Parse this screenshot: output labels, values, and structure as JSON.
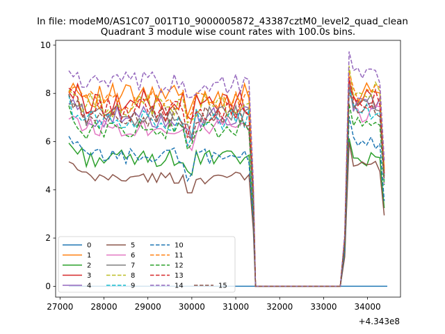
{
  "figure": {
    "suptitle": "In file: modeM0/AS1C07_001T10_9000005872_43387cztM0_level2_quad_clean",
    "title": "Quadrant 3 module wise count rates with 100.0s bins."
  },
  "chart_data": {
    "type": "line",
    "title": "Quadrant 3 module wise count rates with 100.0s bins.",
    "xlabel": "",
    "ylabel": "",
    "x_offset_label": "+4.343e8",
    "xlim": [
      26900,
      34750
    ],
    "ylim": [
      -0.45,
      10.2
    ],
    "xticks": [
      27000,
      28000,
      29000,
      30000,
      31000,
      32000,
      33000,
      34000
    ],
    "xtick_labels": [
      "27000",
      "28000",
      "29000",
      "30000",
      "31000",
      "32000",
      "33000",
      "34000"
    ],
    "yticks": [
      0,
      2,
      4,
      6,
      8,
      10
    ],
    "ytick_labels": [
      "0",
      "2",
      "4",
      "6",
      "8",
      "10"
    ],
    "grid": false,
    "legend_position": "lower-left",
    "legend_columns": 4,
    "x": [
      27200,
      34450
    ],
    "series": [
      {
        "name": "0",
        "color": "#1f77b4",
        "dash": "solid",
        "values": [
          0,
          0
        ]
      },
      {
        "name": "1",
        "color": "#ff7f0e",
        "dash": "solid",
        "segments": [
          {
            "x0": 27200,
            "x1": 31300,
            "base": 7.9,
            "amp": 0.5
          },
          {
            "x0": 33580,
            "x1": 34450,
            "base": 8.0,
            "amp": 0.45
          }
        ]
      },
      {
        "name": "2",
        "color": "#2ca02c",
        "dash": "solid",
        "segments": [
          {
            "x0": 27200,
            "x1": 31300,
            "base": 5.3,
            "amp": 0.35
          },
          {
            "x0": 33580,
            "x1": 34450,
            "base": 5.4,
            "amp": 0.4
          }
        ]
      },
      {
        "name": "3",
        "color": "#d62728",
        "dash": "solid",
        "segments": [
          {
            "x0": 27200,
            "x1": 31300,
            "base": 7.6,
            "amp": 0.55
          },
          {
            "x0": 33580,
            "x1": 34450,
            "base": 7.8,
            "amp": 0.5
          }
        ]
      },
      {
        "name": "4",
        "color": "#9467bd",
        "dash": "solid",
        "segments": [
          {
            "x0": 27200,
            "x1": 31300,
            "base": 7.0,
            "amp": 0.45
          },
          {
            "x0": 33580,
            "x1": 34450,
            "base": 7.6,
            "amp": 0.45
          }
        ]
      },
      {
        "name": "5",
        "color": "#8c564b",
        "dash": "solid",
        "segments": [
          {
            "x0": 27200,
            "x1": 31300,
            "base": 4.5,
            "amp": 0.25
          },
          {
            "x0": 33580,
            "x1": 34450,
            "base": 4.9,
            "amp": 0.3
          }
        ]
      },
      {
        "name": "6",
        "color": "#e377c2",
        "dash": "solid",
        "segments": [
          {
            "x0": 27200,
            "x1": 31300,
            "base": 6.6,
            "amp": 0.4
          },
          {
            "x0": 33580,
            "x1": 34450,
            "base": 7.1,
            "amp": 0.4
          }
        ]
      },
      {
        "name": "7",
        "color": "#7f7f7f",
        "dash": "solid",
        "segments": [
          {
            "x0": 27200,
            "x1": 31300,
            "base": 7.1,
            "amp": 0.45
          },
          {
            "x0": 33580,
            "x1": 34450,
            "base": 7.6,
            "amp": 0.4
          }
        ]
      },
      {
        "name": "8",
        "color": "#bcbd22",
        "dash": "dashed",
        "segments": [
          {
            "x0": 27200,
            "x1": 31300,
            "base": 7.5,
            "amp": 0.5
          },
          {
            "x0": 33580,
            "x1": 34450,
            "base": 8.1,
            "amp": 0.45
          }
        ]
      },
      {
        "name": "9",
        "color": "#17becf",
        "dash": "dashed",
        "segments": [
          {
            "x0": 27200,
            "x1": 31300,
            "base": 6.9,
            "amp": 0.45
          },
          {
            "x0": 33580,
            "x1": 34450,
            "base": 7.3,
            "amp": 0.4
          }
        ]
      },
      {
        "name": "10",
        "color": "#1f77b4",
        "dash": "dashed",
        "segments": [
          {
            "x0": 27200,
            "x1": 31300,
            "base": 5.4,
            "amp": 0.35
          },
          {
            "x0": 33580,
            "x1": 34450,
            "base": 5.9,
            "amp": 0.4
          }
        ]
      },
      {
        "name": "11",
        "color": "#ff7f0e",
        "dash": "dashed",
        "segments": [
          {
            "x0": 27200,
            "x1": 31300,
            "base": 7.7,
            "amp": 0.45
          },
          {
            "x0": 33580,
            "x1": 34450,
            "base": 8.1,
            "amp": 0.45
          }
        ]
      },
      {
        "name": "12",
        "color": "#2ca02c",
        "dash": "dashed",
        "segments": [
          {
            "x0": 27200,
            "x1": 31300,
            "base": 6.5,
            "amp": 0.4
          },
          {
            "x0": 33580,
            "x1": 34450,
            "base": 7.0,
            "amp": 0.4
          }
        ]
      },
      {
        "name": "13",
        "color": "#d62728",
        "dash": "dashed",
        "segments": [
          {
            "x0": 27200,
            "x1": 31300,
            "base": 7.3,
            "amp": 0.5
          },
          {
            "x0": 33580,
            "x1": 34450,
            "base": 7.7,
            "amp": 0.45
          }
        ]
      },
      {
        "name": "14",
        "color": "#9467bd",
        "dash": "dashed",
        "segments": [
          {
            "x0": 27200,
            "x1": 31300,
            "base": 8.4,
            "amp": 0.5
          },
          {
            "x0": 33580,
            "x1": 34450,
            "base": 8.7,
            "amp": 0.4
          }
        ]
      },
      {
        "name": "15",
        "color": "#8c564b",
        "dash": "dashed",
        "segments": [
          {
            "x0": 27200,
            "x1": 31300,
            "base": 7.0,
            "amp": 0.45
          },
          {
            "x0": 33580,
            "x1": 34450,
            "base": 7.4,
            "amp": 0.4
          }
        ]
      }
    ],
    "zero_gap": {
      "x0": 31500,
      "x1": 33380,
      "value": 0
    }
  }
}
